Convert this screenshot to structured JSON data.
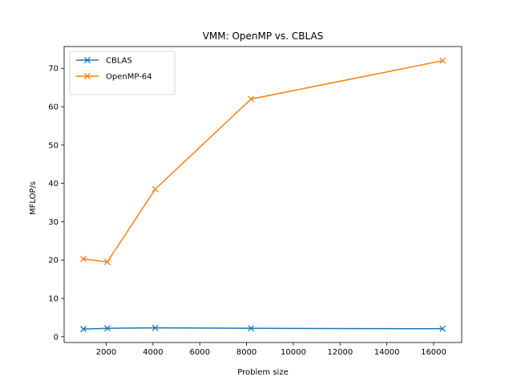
{
  "chart_data": {
    "type": "line",
    "title": "VMM: OpenMP vs. CBLAS",
    "xlabel": "Problem size",
    "ylabel": "MFLOP/s",
    "xlim": [
      200,
      17200
    ],
    "ylim": [
      -1.5,
      75.7
    ],
    "xticks": [
      2000,
      4000,
      6000,
      8000,
      10000,
      12000,
      14000,
      16000
    ],
    "yticks": [
      0,
      10,
      20,
      30,
      40,
      50,
      60,
      70
    ],
    "grid": false,
    "legend_position": "top-left",
    "marker": "x",
    "series": [
      {
        "name": "CBLAS",
        "color": "#1f77b4",
        "x": [
          1024,
          2048,
          4096,
          8192,
          16384
        ],
        "y": [
          2.0,
          2.2,
          2.3,
          2.2,
          2.1
        ]
      },
      {
        "name": "OpenMP-64",
        "color": "#ff7f0e",
        "x": [
          1024,
          2048,
          4096,
          8192,
          16384
        ],
        "y": [
          20.3,
          19.5,
          38.5,
          62.0,
          72.0
        ]
      }
    ]
  }
}
